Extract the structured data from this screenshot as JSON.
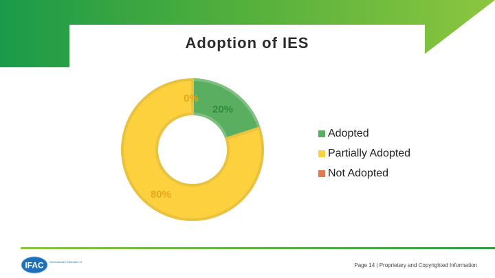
{
  "header": {
    "title": "Adoption of IES"
  },
  "chart_data": {
    "type": "pie",
    "style": "donut",
    "title": "Adoption of IES",
    "categories": [
      "Adopted",
      "Partially Adopted",
      "Not Adopted"
    ],
    "values": [
      20,
      80,
      0
    ],
    "data_labels": [
      "20%",
      "80%",
      "0%"
    ],
    "colors": [
      "#5aae5f",
      "#fcd13d",
      "#e07b4f"
    ],
    "legend_position": "right"
  },
  "footer": {
    "page_text": "Page 14 | Proprietary and Copyrighted Information",
    "logo_text": "IFAC",
    "logo_tagline": "International Federation of Accountants"
  }
}
